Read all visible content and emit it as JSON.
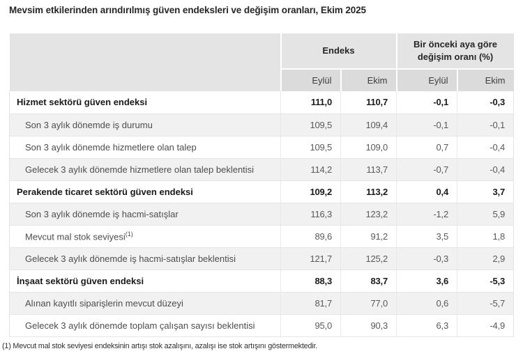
{
  "title": "Mevsim etkilerinden arındırılmış güven endeksleri ve değişim oranları, Ekim 2025",
  "table": {
    "group_headers": [
      {
        "label": "Endeks"
      },
      {
        "label": "Bir önceki aya göre değişim oranı (%)"
      }
    ],
    "sub_headers": [
      "Eylül",
      "Ekim",
      "Eylül",
      "Ekim"
    ],
    "rows": [
      {
        "label": "Hizmet sektörü güven endeksi",
        "bold": true,
        "values": [
          "111,0",
          "110,7",
          "-0,1",
          "-0,3"
        ]
      },
      {
        "label": "Son 3 aylık dönemde iş durumu",
        "bold": false,
        "values": [
          "109,5",
          "109,4",
          "-0,1",
          "-0,1"
        ]
      },
      {
        "label": "Son 3 aylık dönemde hizmetlere olan talep",
        "bold": false,
        "values": [
          "109,5",
          "109,0",
          "0,7",
          "-0,4"
        ]
      },
      {
        "label": "Gelecek 3 aylık dönemde hizmetlere olan talep beklentisi",
        "bold": false,
        "values": [
          "114,2",
          "113,7",
          "-0,7",
          "-0,4"
        ]
      },
      {
        "label": "Perakende ticaret sektörü güven endeksi",
        "bold": true,
        "values": [
          "109,2",
          "113,2",
          "0,4",
          "3,7"
        ]
      },
      {
        "label": "Son 3 aylık dönemde iş hacmi-satışlar",
        "bold": false,
        "values": [
          "116,3",
          "123,2",
          "-1,2",
          "5,9"
        ]
      },
      {
        "label": "Mevcut mal stok seviyesi",
        "sup": "(1)",
        "bold": false,
        "values": [
          "89,6",
          "91,2",
          "3,5",
          "1,8"
        ]
      },
      {
        "label": "Gelecek 3 aylık dönemde iş hacmi-satışlar beklentisi",
        "bold": false,
        "values": [
          "121,7",
          "125,2",
          "-0,3",
          "2,9"
        ]
      },
      {
        "label": "İnşaat sektörü güven endeksi",
        "bold": true,
        "values": [
          "88,3",
          "83,7",
          "3,6",
          "-5,3"
        ]
      },
      {
        "label": "Alınan kayıtlı siparişlerin mevcut düzeyi",
        "bold": false,
        "values": [
          "81,7",
          "77,0",
          "0,6",
          "-5,7"
        ]
      },
      {
        "label": "Gelecek 3 aylık dönemde toplam çalışan sayısı beklentisi",
        "bold": false,
        "values": [
          "95,0",
          "90,3",
          "6,3",
          "-4,9"
        ]
      }
    ]
  },
  "footnote": "(1) Mevcut mal stok seviyesi endeksinin artışı stok azalışını, azalışı ise stok artışını göstermektedir.",
  "colors": {
    "header_bg": "#e4e4e4",
    "subheader_bg": "#dbdbdb",
    "row_shaded_bg": "#f1f1f1",
    "border": "#e6e6e6",
    "text_bold": "#1a1a1a",
    "text_regular": "#595959"
  }
}
